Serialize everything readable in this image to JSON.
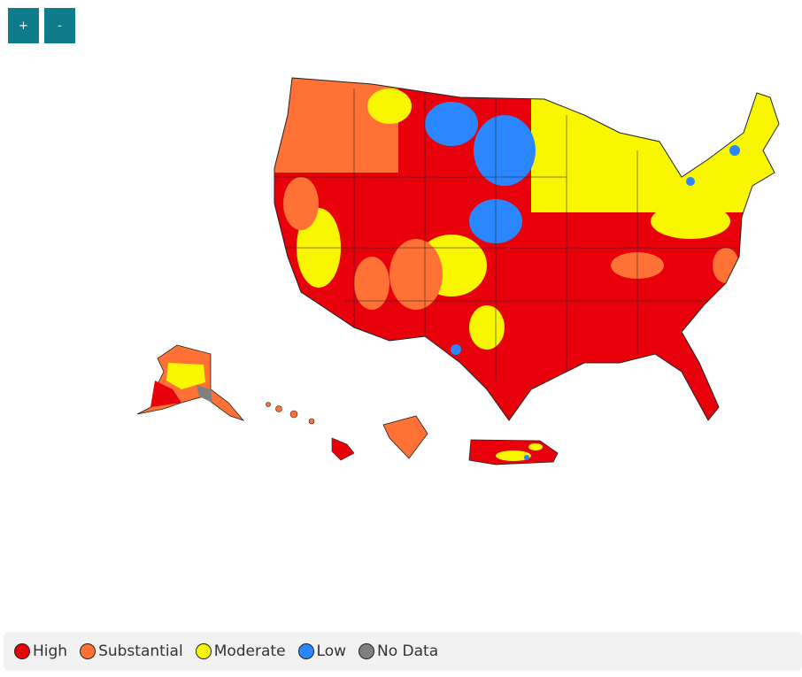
{
  "controls": {
    "zoom_in": "+",
    "zoom_out": "-"
  },
  "legend": {
    "items": [
      {
        "label": "High",
        "color": "#e8000b"
      },
      {
        "label": "Substantial",
        "color": "#ff7134"
      },
      {
        "label": "Moderate",
        "color": "#f9f700"
      },
      {
        "label": "Low",
        "color": "#2b87ff"
      },
      {
        "label": "No Data",
        "color": "#808080"
      }
    ]
  }
}
